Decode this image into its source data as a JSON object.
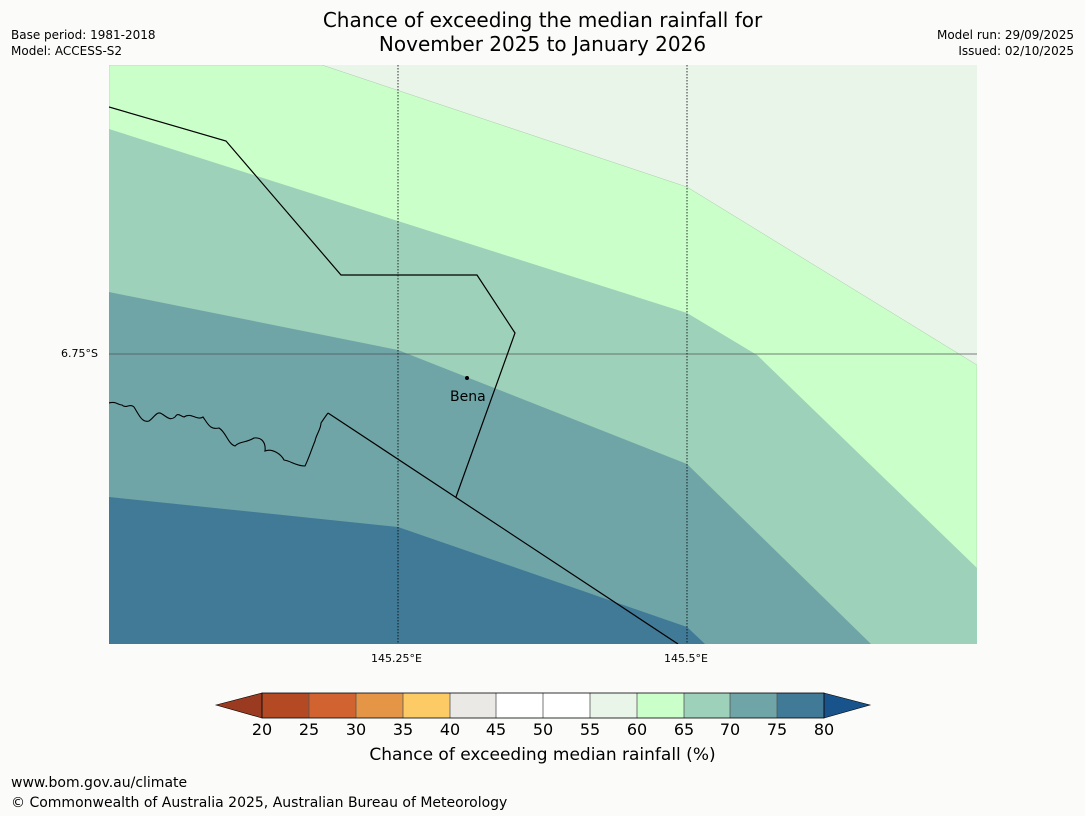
{
  "title": {
    "line1": "Chance of exceeding the median rainfall for",
    "line2": "November 2025 to January 2026"
  },
  "meta_left": {
    "base_period": "Base period: 1981-2018",
    "model": "Model: ACCESS-S2"
  },
  "meta_right": {
    "model_run": "Model run: 29/09/2025",
    "issued": "Issued: 02/10/2025"
  },
  "map": {
    "lat_label": "6.75°S",
    "lon_labels": [
      "145.25°E",
      "145.5°E"
    ],
    "town": "Bena"
  },
  "legend": {
    "ticks": [
      "20",
      "25",
      "30",
      "35",
      "40",
      "45",
      "50",
      "55",
      "60",
      "65",
      "70",
      "75",
      "80"
    ],
    "title": "Chance of exceeding median rainfall (%)",
    "colors": {
      "below_20": "#9a3a20",
      "20_25": "#b34a24",
      "25_30": "#d0632f",
      "30_35": "#e49545",
      "35_40": "#fdcb66",
      "40_45": "#ebe9e6",
      "45_50": "#ffffff",
      "50_55": "#ffffff",
      "55_60": "#eaf5ea",
      "60_65": "#caffca",
      "65_70": "#9dd1b9",
      "70_75": "#6fa5a7",
      "75_80": "#407a97",
      "above_80": "#19538c"
    }
  },
  "footer": {
    "url": "www.bom.gov.au/climate",
    "copyright": "© Commonwealth of Australia 2025, Australian Bureau of Meteorology"
  }
}
